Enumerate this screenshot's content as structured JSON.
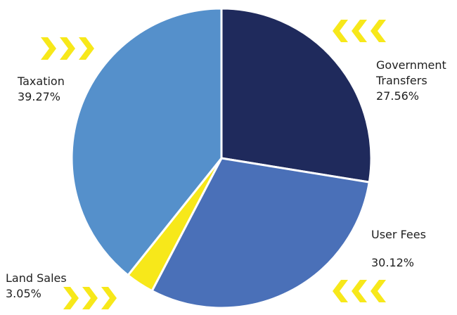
{
  "chart_data": {
    "type": "pie",
    "slices": [
      {
        "label": "Government Transfers",
        "percent_label": "27.56%",
        "value": 27.56,
        "color": "#1f2a5c"
      },
      {
        "label": "User Fees",
        "percent_label": "30.12%",
        "value": 30.12,
        "color": "#4a70b8"
      },
      {
        "label": "Land Sales",
        "percent_label": "3.05%",
        "value": 3.05,
        "color": "#f7e81a"
      },
      {
        "label": "Taxation",
        "percent_label": "39.27%",
        "value": 39.27,
        "color": "#5590cb"
      }
    ],
    "decorations": {
      "arrow_color": "#f7e81a",
      "arrow_icon": "chevron-arrow-icon"
    }
  },
  "labels": {
    "government": {
      "line1": "Government",
      "line2": "Transfers",
      "pct": "27.56%"
    },
    "user_fees": {
      "name": "User Fees",
      "pct": "30.12%"
    },
    "land_sales": {
      "name": "Land Sales",
      "pct": "3.05%"
    },
    "taxation": {
      "name": "Taxation",
      "pct": "39.27%"
    }
  }
}
